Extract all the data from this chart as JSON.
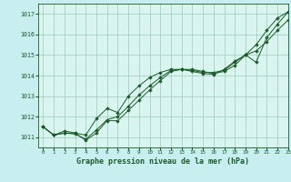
{
  "title": "Graphe pression niveau de la mer (hPa)",
  "bg_color": "#c8eef0",
  "plot_bg_color": "#daf5f0",
  "grid_color": "#99ccbb",
  "line_color": "#1a5c28",
  "marker_color": "#1a5c28",
  "xlim": [
    -0.5,
    23
  ],
  "ylim": [
    1010.5,
    1017.5
  ],
  "xticks": [
    0,
    1,
    2,
    3,
    4,
    5,
    6,
    7,
    8,
    9,
    10,
    11,
    12,
    13,
    14,
    15,
    16,
    17,
    18,
    19,
    20,
    21,
    22,
    23
  ],
  "yticks": [
    1011,
    1012,
    1013,
    1014,
    1015,
    1016,
    1017
  ],
  "series": [
    [
      1011.5,
      1011.1,
      1011.2,
      1011.2,
      1011.1,
      1011.9,
      1012.4,
      1012.2,
      1013.0,
      1013.5,
      1013.9,
      1014.15,
      1014.3,
      1014.3,
      1014.25,
      1014.15,
      1014.15,
      1014.25,
      1014.65,
      1015.0,
      1014.65,
      1015.85,
      1016.5,
      1017.1
    ],
    [
      1011.5,
      1011.1,
      1011.2,
      1011.15,
      1010.9,
      1011.35,
      1011.85,
      1012.0,
      1012.5,
      1013.05,
      1013.5,
      1013.9,
      1014.25,
      1014.3,
      1014.2,
      1014.1,
      1014.05,
      1014.3,
      1014.7,
      1015.0,
      1015.5,
      1016.2,
      1016.8,
      1017.1
    ],
    [
      1011.5,
      1011.1,
      1011.3,
      1011.2,
      1010.85,
      1011.2,
      1011.8,
      1011.8,
      1012.3,
      1012.8,
      1013.3,
      1013.75,
      1014.2,
      1014.3,
      1014.3,
      1014.2,
      1014.1,
      1014.2,
      1014.5,
      1015.0,
      1015.2,
      1015.65,
      1016.2,
      1016.7
    ]
  ]
}
